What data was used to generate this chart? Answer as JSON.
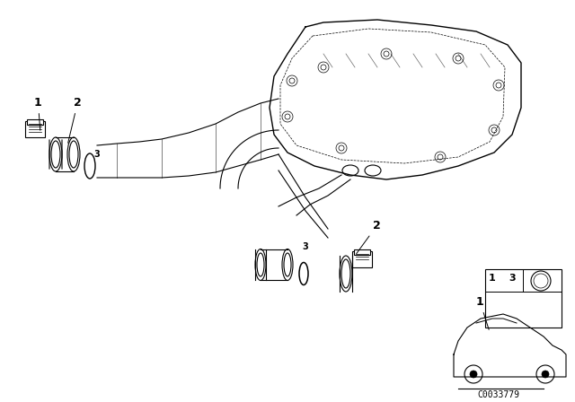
{
  "title": "",
  "background_color": "#ffffff",
  "line_color": "#000000",
  "part_numbers": [
    "1",
    "2",
    "3"
  ],
  "catalog_number": "C0033779",
  "fig_width": 6.4,
  "fig_height": 4.48,
  "dpi": 100
}
